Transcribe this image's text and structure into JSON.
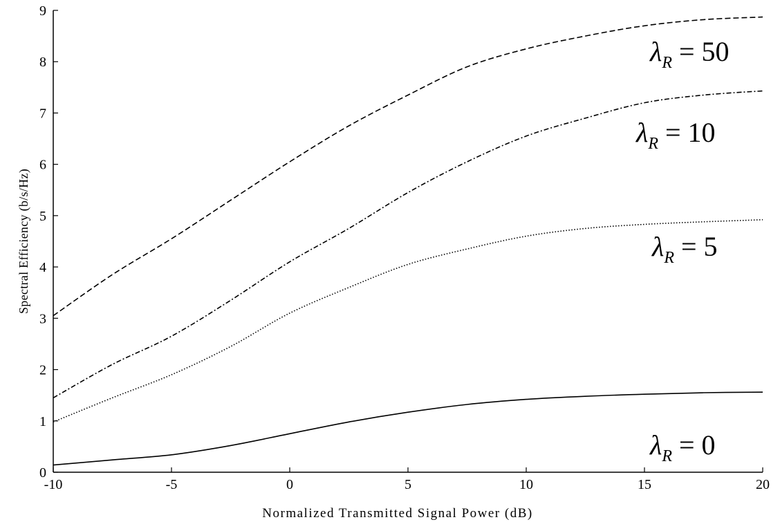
{
  "chart_data": {
    "type": "line",
    "title": "",
    "xlabel": "Normalized Transmitted Signal Power (dB)",
    "ylabel": "Spectral Efficiency (b/s/Hz)",
    "xlim": [
      -10,
      20
    ],
    "ylim": [
      0,
      9
    ],
    "xticks": [
      -10,
      -5,
      0,
      5,
      10,
      15,
      20
    ],
    "yticks": [
      0,
      1,
      2,
      3,
      4,
      5,
      6,
      7,
      8,
      9
    ],
    "xtick_labels": [
      "-10",
      "-5",
      "0",
      "5",
      "10",
      "15",
      "20"
    ],
    "ytick_labels": [
      "0",
      "1",
      "2",
      "3",
      "4",
      "5",
      "6",
      "7",
      "8",
      "9"
    ],
    "grid": false,
    "legend": "none",
    "x": [
      -10,
      -7.5,
      -5,
      -2.5,
      0,
      2.5,
      5,
      7.5,
      10,
      12.5,
      15,
      17.5,
      20
    ],
    "series": [
      {
        "label_prefix": "λ",
        "label_sub": "R",
        "label_value": "= 50",
        "dash": "dashed",
        "values": [
          3.05,
          3.85,
          4.55,
          5.3,
          6.05,
          6.75,
          7.35,
          7.9,
          8.25,
          8.5,
          8.7,
          8.82,
          8.87
        ]
      },
      {
        "label_prefix": "λ",
        "label_sub": "R",
        "label_value": "= 10",
        "dash": "dash-dot",
        "values": [
          1.45,
          2.1,
          2.65,
          3.35,
          4.1,
          4.75,
          5.45,
          6.05,
          6.55,
          6.9,
          7.2,
          7.35,
          7.43
        ]
      },
      {
        "label_prefix": "λ",
        "label_sub": "R",
        "label_value": "= 5",
        "dash": "dotted",
        "values": [
          0.98,
          1.45,
          1.9,
          2.45,
          3.1,
          3.6,
          4.05,
          4.35,
          4.6,
          4.75,
          4.83,
          4.88,
          4.92
        ]
      },
      {
        "label_prefix": "λ",
        "label_sub": "R",
        "label_value": "= 0",
        "dash": "solid",
        "values": [
          0.14,
          0.24,
          0.34,
          0.52,
          0.75,
          0.98,
          1.17,
          1.32,
          1.42,
          1.48,
          1.52,
          1.55,
          1.56
        ]
      }
    ]
  }
}
